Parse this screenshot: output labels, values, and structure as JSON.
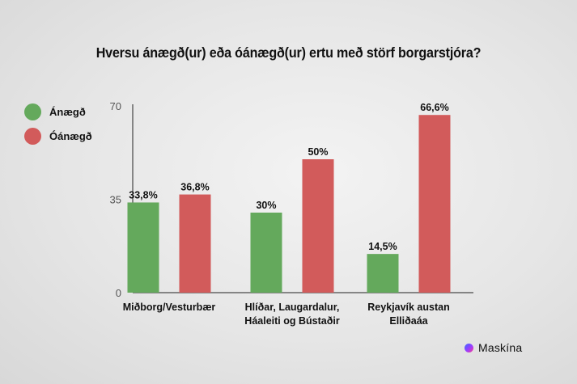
{
  "chart_data": {
    "type": "bar",
    "title": "Hversu ánægð(ur) eða óánægð(ur) ertu með störf borgarstjóra?",
    "categories": [
      [
        "Miðborg/Vesturbær"
      ],
      [
        "Hlíðar, Laugardalur,",
        "Háaleiti og Bústaðir"
      ],
      [
        "Reykjavík austan",
        "Elliðaáa"
      ]
    ],
    "series": [
      {
        "name": "Ánægð",
        "color": "#64a95c",
        "values": [
          33.8,
          30,
          14.5
        ],
        "labels": [
          "33,8%",
          "30%",
          "14,5%"
        ]
      },
      {
        "name": "Óánægð",
        "color": "#d25b5b",
        "values": [
          36.8,
          50,
          66.6
        ],
        "labels": [
          "36,8%",
          "50%",
          "66,6%"
        ]
      }
    ],
    "ylim": [
      0,
      70
    ],
    "yticks": [
      0,
      35,
      70
    ],
    "legend_position": "left",
    "grid": false
  },
  "brand": {
    "name": "Maskína"
  }
}
